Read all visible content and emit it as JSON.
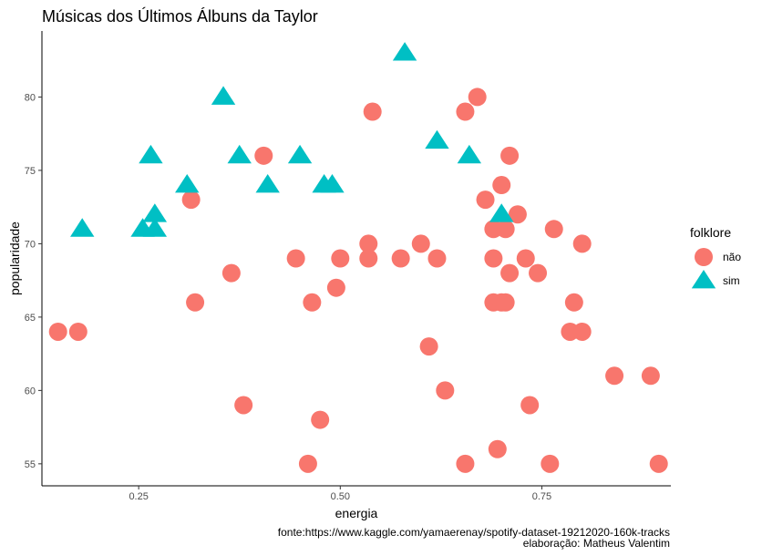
{
  "chart_data": {
    "type": "scatter",
    "title": "Músicas dos Últimos Álbuns da Taylor",
    "xlabel": "energia",
    "ylabel": "popularidade",
    "xlim": [
      0.13,
      0.91
    ],
    "ylim": [
      53.5,
      84.5
    ],
    "xticks": [
      {
        "value": 0.25,
        "label": "0.25"
      },
      {
        "value": 0.5,
        "label": "0.50"
      },
      {
        "value": 0.75,
        "label": "0.75"
      }
    ],
    "yticks": [
      {
        "value": 55,
        "label": "55"
      },
      {
        "value": 60,
        "label": "60"
      },
      {
        "value": 65,
        "label": "65"
      },
      {
        "value": 70,
        "label": "70"
      },
      {
        "value": 75,
        "label": "75"
      },
      {
        "value": 80,
        "label": "80"
      }
    ],
    "grid": false,
    "legend": {
      "title": "folklore",
      "placement": "right",
      "entries": [
        {
          "label": "não",
          "shape": "circle",
          "color": "#F8766D"
        },
        {
          "label": "sim",
          "shape": "triangle",
          "color": "#00BFC4"
        }
      ]
    },
    "series": [
      {
        "name": "não",
        "shape": "circle",
        "color": "#F8766D",
        "points": [
          [
            0.15,
            64
          ],
          [
            0.175,
            64
          ],
          [
            0.315,
            73
          ],
          [
            0.32,
            66
          ],
          [
            0.365,
            68
          ],
          [
            0.38,
            59
          ],
          [
            0.405,
            76
          ],
          [
            0.445,
            69
          ],
          [
            0.46,
            55
          ],
          [
            0.465,
            66
          ],
          [
            0.475,
            58
          ],
          [
            0.495,
            67
          ],
          [
            0.5,
            69
          ],
          [
            0.535,
            70
          ],
          [
            0.535,
            69
          ],
          [
            0.54,
            79
          ],
          [
            0.575,
            69
          ],
          [
            0.6,
            70
          ],
          [
            0.61,
            63
          ],
          [
            0.62,
            69
          ],
          [
            0.63,
            60
          ],
          [
            0.655,
            79
          ],
          [
            0.655,
            55
          ],
          [
            0.67,
            80
          ],
          [
            0.68,
            73
          ],
          [
            0.69,
            71
          ],
          [
            0.69,
            69
          ],
          [
            0.69,
            66
          ],
          [
            0.695,
            56
          ],
          [
            0.7,
            74
          ],
          [
            0.7,
            66
          ],
          [
            0.705,
            71
          ],
          [
            0.705,
            66
          ],
          [
            0.71,
            76
          ],
          [
            0.71,
            68
          ],
          [
            0.72,
            72
          ],
          [
            0.73,
            69
          ],
          [
            0.735,
            59
          ],
          [
            0.745,
            68
          ],
          [
            0.76,
            55
          ],
          [
            0.765,
            71
          ],
          [
            0.785,
            64
          ],
          [
            0.79,
            66
          ],
          [
            0.8,
            70
          ],
          [
            0.8,
            64
          ],
          [
            0.84,
            61
          ],
          [
            0.885,
            61
          ],
          [
            0.895,
            55
          ]
        ]
      },
      {
        "name": "sim",
        "shape": "triangle",
        "color": "#00BFC4",
        "points": [
          [
            0.18,
            71
          ],
          [
            0.255,
            71
          ],
          [
            0.265,
            76
          ],
          [
            0.27,
            71
          ],
          [
            0.27,
            72
          ],
          [
            0.31,
            74
          ],
          [
            0.355,
            80
          ],
          [
            0.375,
            76
          ],
          [
            0.41,
            74
          ],
          [
            0.45,
            76
          ],
          [
            0.48,
            74
          ],
          [
            0.49,
            74
          ],
          [
            0.58,
            83
          ],
          [
            0.62,
            77
          ],
          [
            0.66,
            76
          ],
          [
            0.7,
            72
          ]
        ]
      }
    ]
  },
  "caption": {
    "source": "fonte:https://www.kaggle.com/yamaerenay/spotify-dataset-19212020-160k-tracks",
    "author": "elaboração: Matheus Valentim"
  }
}
